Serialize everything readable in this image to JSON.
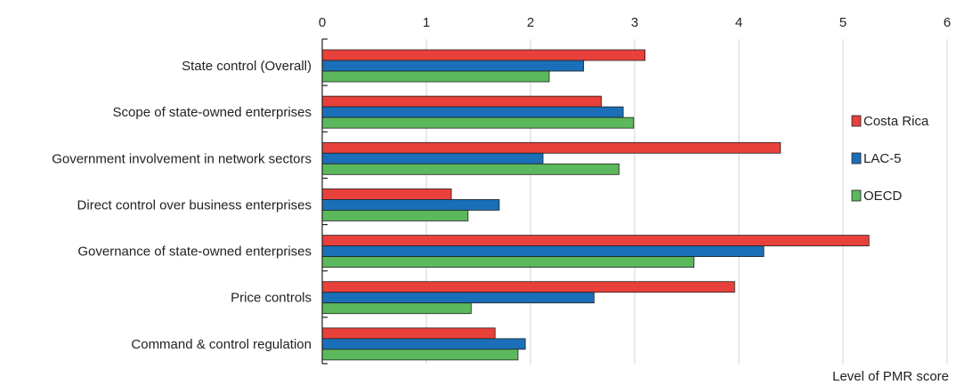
{
  "chart_data": {
    "type": "bar",
    "orientation": "horizontal",
    "categories": [
      "State control (Overall)",
      "Scope of state-owned enterprises",
      "Government involvement in network sectors",
      "Direct control over business enterprises",
      "Governance of state-owned enterprises",
      "Price controls",
      "Command & control regulation"
    ],
    "series": [
      {
        "name": "Costa Rica",
        "color": "#e8403a",
        "values": [
          3.1,
          2.68,
          4.4,
          1.24,
          5.25,
          3.96,
          1.66
        ]
      },
      {
        "name": "LAC-5",
        "color": "#1a6fb8",
        "values": [
          2.51,
          2.89,
          2.12,
          1.7,
          4.24,
          2.61,
          1.95
        ]
      },
      {
        "name": "OECD",
        "color": "#5cb85c",
        "values": [
          2.18,
          2.99,
          2.85,
          1.4,
          3.57,
          1.43,
          1.88
        ]
      }
    ],
    "xlim": [
      0,
      6
    ],
    "xticks": [
      "0",
      "1",
      "2",
      "3",
      "4",
      "5",
      "6"
    ],
    "xlabel": "Level of PMR score",
    "grid": true,
    "legend_position": "right"
  }
}
